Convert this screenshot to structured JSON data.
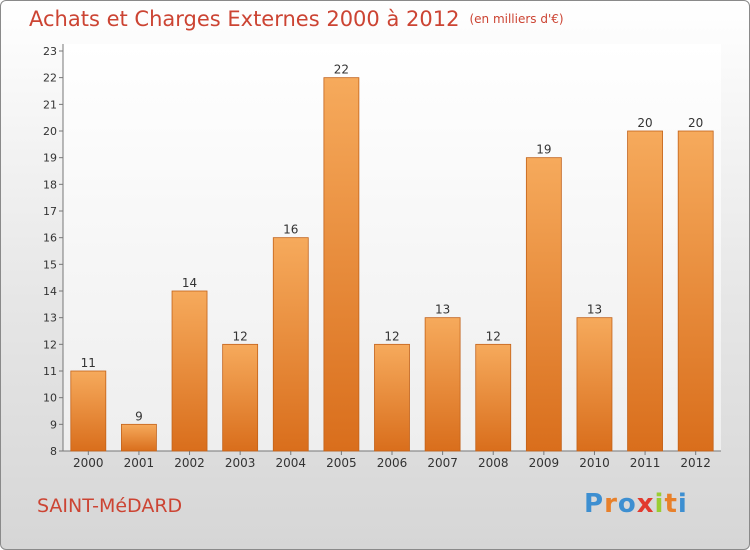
{
  "chart_data": {
    "type": "bar",
    "title": "Achats et Charges Externes 2000 à 2012",
    "subtitle": "(en milliers d'€)",
    "categories": [
      "2000",
      "2001",
      "2002",
      "2003",
      "2004",
      "2005",
      "2006",
      "2007",
      "2008",
      "2009",
      "2010",
      "2011",
      "2012"
    ],
    "values": [
      11,
      9,
      14,
      12,
      16,
      22,
      12,
      13,
      12,
      19,
      13,
      20,
      20
    ],
    "ylim": [
      8,
      23
    ],
    "yticks": [
      8,
      9,
      10,
      11,
      12,
      13,
      14,
      15,
      16,
      17,
      18,
      19,
      20,
      21,
      22,
      23
    ],
    "grid": false,
    "bar_color": "#e8802a",
    "bar_color_light": "#f6aa5c",
    "xlabel": "",
    "ylabel": ""
  },
  "colors": {
    "title": "#cc4433",
    "axis": "#555555"
  },
  "footer": {
    "town": "SAINT-MéDARD",
    "logo": {
      "text": "Proxiti",
      "letters": [
        {
          "ch": "P",
          "color": "#3d8fd1"
        },
        {
          "ch": "r",
          "color": "#e8802a"
        },
        {
          "ch": "o",
          "color": "#3d8fd1"
        },
        {
          "ch": "x",
          "color": "#e23a2e"
        },
        {
          "ch": "i",
          "color": "#9acd32"
        },
        {
          "ch": "t",
          "color": "#e8802a"
        },
        {
          "ch": "i",
          "color": "#3d8fd1"
        }
      ]
    }
  }
}
